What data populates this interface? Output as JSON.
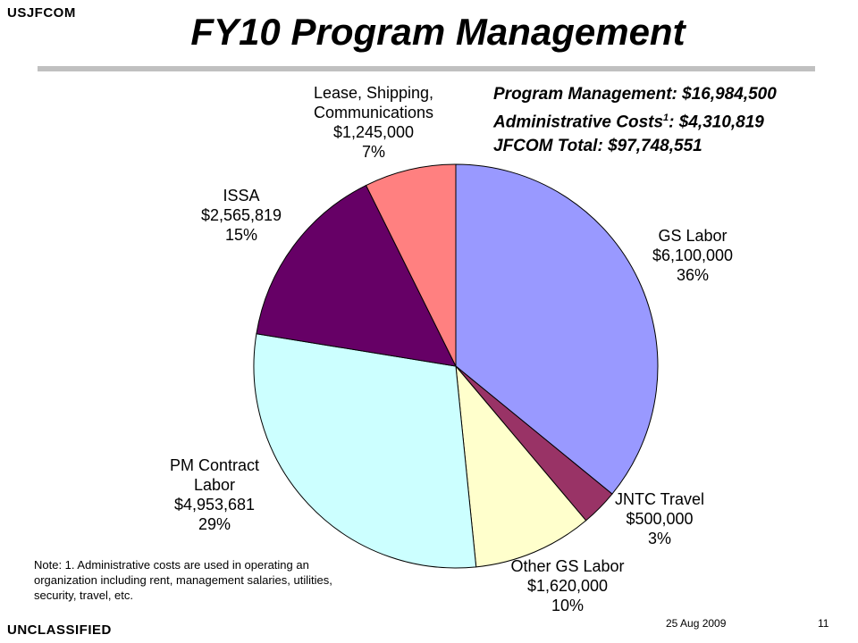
{
  "header": {
    "org": "USJFCOM",
    "title": "FY10 Program Management"
  },
  "summary": {
    "line1": "Program Management: $16,984,500",
    "line2_prefix": "Administrative Costs",
    "line2_sup": "1",
    "line2_suffix": ": $4,310,819",
    "line3": "JFCOM Total: $97,748,551"
  },
  "chart_data": {
    "type": "pie",
    "title": "",
    "slices": [
      {
        "label_lines": [
          "GS Labor"
        ],
        "amount": "$6,100,000",
        "value": 6100000,
        "percent": "36%",
        "color": "#9999ff"
      },
      {
        "label_lines": [
          "JNTC Travel"
        ],
        "amount": "$500,000",
        "value": 500000,
        "percent": "3%",
        "color": "#993366"
      },
      {
        "label_lines": [
          "Other GS Labor"
        ],
        "amount": "$1,620,000",
        "value": 1620000,
        "percent": "10%",
        "color": "#ffffcc"
      },
      {
        "label_lines": [
          "PM Contract",
          "Labor"
        ],
        "amount": "$4,953,681",
        "value": 4953681,
        "percent": "29%",
        "color": "#ccffff"
      },
      {
        "label_lines": [
          "ISSA"
        ],
        "amount": "$2,565,819",
        "value": 2565819,
        "percent": "15%",
        "color": "#660066"
      },
      {
        "label_lines": [
          "Lease, Shipping,",
          "Communications"
        ],
        "amount": "$1,245,000",
        "value": 1245000,
        "percent": "7%",
        "color": "#ff8080"
      }
    ],
    "start_angle": "12 o'clock",
    "direction": "clockwise",
    "legend": "none"
  },
  "footer": {
    "note": "Note: 1. Administrative costs are used in operating an organization including rent, management salaries, utilities, security, travel, etc.",
    "classification": "UNCLASSIFIED",
    "date": "25 Aug 2009",
    "page_number": "11"
  }
}
